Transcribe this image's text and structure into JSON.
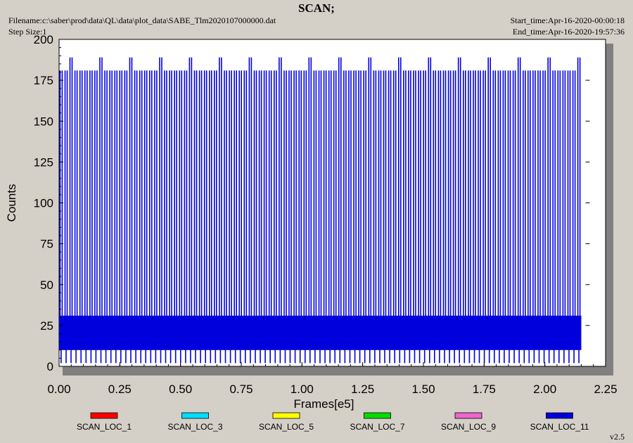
{
  "header": {
    "title": "SCAN;",
    "filename": "Filename:c:\\saber\\prod\\data\\QL\\data\\plot_data\\SABE_Tlm2020107000000.dat",
    "step_size": "Step Size:1",
    "start_time": "Start_time:Apr-16-2020-00:00:18",
    "end_time": "End_time:Apr-16-2020-19:57:36",
    "version": "v2.5"
  },
  "colors": {
    "background": "#d4d0c8",
    "plot_area": "#ffffff",
    "shadow": "#808080",
    "dominant_series": "#0000dd"
  },
  "chart_data": {
    "type": "line",
    "title": "SCAN;",
    "xlabel": "Frames[e5]",
    "ylabel": "Counts",
    "xlim": [
      0,
      2.25
    ],
    "ylim": [
      0,
      200
    ],
    "x_ticks": [
      "0.00",
      "0.25",
      "0.50",
      "0.75",
      "1.00",
      "1.25",
      "1.50",
      "1.75",
      "2.00",
      "2.25"
    ],
    "y_ticks": [
      "0",
      "25",
      "50",
      "75",
      "100",
      "125",
      "150",
      "175",
      "200"
    ],
    "grid": false,
    "legend_position": "bottom",
    "data_x_range": [
      0.0,
      2.15
    ],
    "series": [
      {
        "name": "SCAN_LOC_1",
        "color": "#ff0000",
        "values": []
      },
      {
        "name": "SCAN_LOC_3",
        "color": "#00ddff",
        "values": []
      },
      {
        "name": "SCAN_LOC_5",
        "color": "#ffff00",
        "values": []
      },
      {
        "name": "SCAN_LOC_7",
        "color": "#00dd00",
        "values": []
      },
      {
        "name": "SCAN_LOC_9",
        "color": "#ee66cc",
        "values": []
      },
      {
        "name": "SCAN_LOC_11",
        "color": "#0000dd",
        "pattern": "dense oscillation",
        "band_low": 10,
        "band_high": 31,
        "min_value": 2,
        "spike_high": 181,
        "spike_max": 189,
        "spike_period": 0.0205,
        "values": []
      }
    ]
  }
}
